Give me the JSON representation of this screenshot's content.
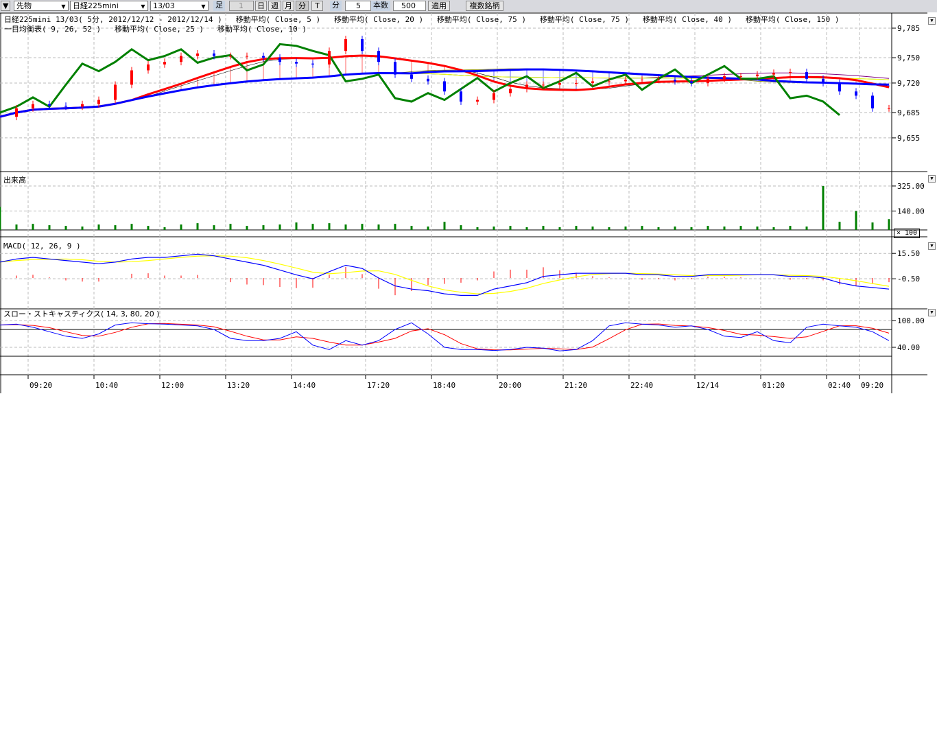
{
  "toolbar": {
    "market": "先物",
    "symbol": "日経225mini",
    "contract": "13/03",
    "bar_label": "足",
    "bar_count": "1",
    "day": "日",
    "week": "週",
    "month": "月",
    "minute": "分",
    "tick": "T",
    "interval_label": "分",
    "interval": "5",
    "count_label": "本数",
    "count": "500",
    "apply": "適用",
    "multi": "複数銘柄"
  },
  "legend": {
    "line1": "日経225mini 13/03( 5分, 2012/12/12 - 2012/12/14 )   移動平均( Close, 5 )   移動平均( Close, 20 )   移動平均( Close, 75 )   移動平均( Close, 75 )   移動平均( Close, 40 )   移動平均( Close, 150 )",
    "line2": "一目均衡表( 9, 26, 52 )   移動平均( Close, 25 )   移動平均( Close, 10 )"
  },
  "panels": {
    "volume_label": "出来高",
    "volume_scale": "× 100",
    "macd_label": "MACD( 12, 26, 9 )",
    "stoch_label": "スロー・ストキャスティクス( 14, 3, 80, 20 )"
  },
  "colors": {
    "up": "#ff0000",
    "down": "#0000ff",
    "chikou": "#008000",
    "volume": "#008000",
    "macd": "#0000ff",
    "signal": "#ffff00",
    "ma5": "#ff0000",
    "ma20": "#0000ff",
    "ma75": "#00cccc",
    "cloud": "#ff0000"
  },
  "chart_data": {
    "type": "line",
    "x_tick_labels": [
      "09:20",
      "10:40",
      "12:00",
      "13:20",
      "14:40",
      "17:20",
      "18:40",
      "20:00",
      "21:20",
      "22:40",
      "12/14",
      "01:20",
      "02:40",
      "09:20"
    ],
    "price": {
      "yticks": [
        "9,785",
        "9,750",
        "9,720",
        "9,685",
        "9,655"
      ],
      "ylim": [
        9630,
        9800
      ],
      "close": [
        9680,
        9690,
        9695,
        9693,
        9692,
        9695,
        9700,
        9718,
        9735,
        9742,
        9745,
        9752,
        9755,
        9752,
        9752,
        9752,
        9750,
        9745,
        9743,
        9742,
        9758,
        9772,
        9758,
        9745,
        9730,
        9725,
        9722,
        9710,
        9698,
        9700,
        9708,
        9713,
        9718,
        9718,
        9720,
        9720,
        9722,
        9722,
        9724,
        9724,
        9724,
        9722,
        9720,
        9725,
        9728,
        9728,
        9730,
        9732,
        9733,
        9725,
        9720,
        9710,
        9705,
        9690,
        9690
      ]
    },
    "volume": {
      "yticks": [
        "325.00",
        "140.00"
      ],
      "values": [
        170,
        40,
        45,
        35,
        30,
        25,
        40,
        35,
        45,
        30,
        20,
        40,
        50,
        35,
        45,
        30,
        35,
        40,
        55,
        45,
        50,
        40,
        45,
        40,
        45,
        30,
        25,
        60,
        35,
        20,
        25,
        30,
        20,
        30,
        20,
        30,
        25,
        20,
        25,
        30,
        20,
        25,
        20,
        30,
        25,
        30,
        25,
        20,
        30,
        25,
        325,
        60,
        140,
        55,
        80
      ]
    },
    "macd": {
      "yticks": [
        "15.50",
        "-0.50"
      ],
      "values": [
        10,
        12,
        13,
        12,
        11,
        10,
        9,
        10,
        12,
        13,
        13,
        14,
        15,
        14,
        12,
        10,
        8,
        5,
        2,
        -0.5,
        4,
        8,
        6,
        0,
        -5,
        -7,
        -8,
        -10,
        -11,
        -11,
        -7,
        -5,
        -3,
        1,
        2,
        3,
        3,
        3,
        3,
        2,
        2,
        1,
        1,
        2,
        2,
        2,
        2,
        2,
        1,
        1,
        0,
        -3,
        -5,
        -6,
        -7
      ]
    },
    "stochastic": {
      "yticks": [
        "100.00",
        "40.00"
      ],
      "k": [
        90,
        92,
        85,
        75,
        65,
        60,
        70,
        90,
        95,
        93,
        92,
        90,
        88,
        80,
        60,
        55,
        55,
        60,
        75,
        45,
        35,
        55,
        45,
        55,
        80,
        95,
        70,
        40,
        35,
        35,
        33,
        35,
        40,
        38,
        32,
        35,
        55,
        88,
        95,
        92,
        90,
        85,
        88,
        80,
        65,
        62,
        75,
        55,
        50,
        85,
        92,
        88,
        85,
        75,
        55
      ]
    }
  }
}
